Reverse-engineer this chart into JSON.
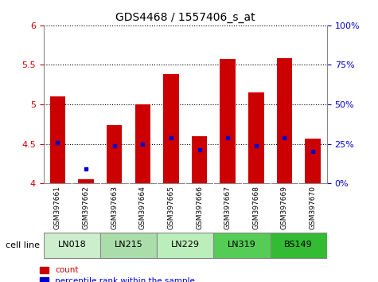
{
  "title": "GDS4468 / 1557406_s_at",
  "samples": [
    "GSM397661",
    "GSM397662",
    "GSM397663",
    "GSM397664",
    "GSM397665",
    "GSM397666",
    "GSM397667",
    "GSM397668",
    "GSM397669",
    "GSM397670"
  ],
  "count_values": [
    5.1,
    4.05,
    4.74,
    5.0,
    5.38,
    4.6,
    5.57,
    5.15,
    5.58,
    4.57
  ],
  "percentile_values": [
    26,
    9,
    24,
    25,
    29,
    21,
    29,
    24,
    29,
    20
  ],
  "ymin": 4.0,
  "ymax": 6.0,
  "yticks": [
    4.0,
    4.5,
    5.0,
    5.5,
    6.0
  ],
  "ytick_labels": [
    "4",
    "4.5",
    "5",
    "5.5",
    "6"
  ],
  "y2min": 0,
  "y2max": 100,
  "y2ticks": [
    0,
    25,
    50,
    75,
    100
  ],
  "y2ticklabels": [
    "0%",
    "25%",
    "50%",
    "75%",
    "100%"
  ],
  "bar_color": "#cc0000",
  "dot_color": "#0000cc",
  "bar_width": 0.55,
  "cell_lines": [
    {
      "name": "LN018",
      "samples": [
        0,
        1
      ],
      "color": "#cceecc"
    },
    {
      "name": "LN215",
      "samples": [
        2,
        3
      ],
      "color": "#aaddaa"
    },
    {
      "name": "LN229",
      "samples": [
        4,
        5
      ],
      "color": "#bbeebb"
    },
    {
      "name": "LN319",
      "samples": [
        6,
        7
      ],
      "color": "#55cc55"
    },
    {
      "name": "BS149",
      "samples": [
        8,
        9
      ],
      "color": "#33bb33"
    }
  ],
  "legend_count_label": "count",
  "legend_pct_label": "percentile rank within the sample",
  "cell_line_label": "cell line",
  "tick_color_left": "#cc0000",
  "tick_color_right": "#0000cc",
  "background_plot": "#ffffff",
  "background_samples": "#bbbbbb",
  "sample_label_fontsize": 6.5,
  "cell_line_fontsize": 8,
  "title_fontsize": 10
}
